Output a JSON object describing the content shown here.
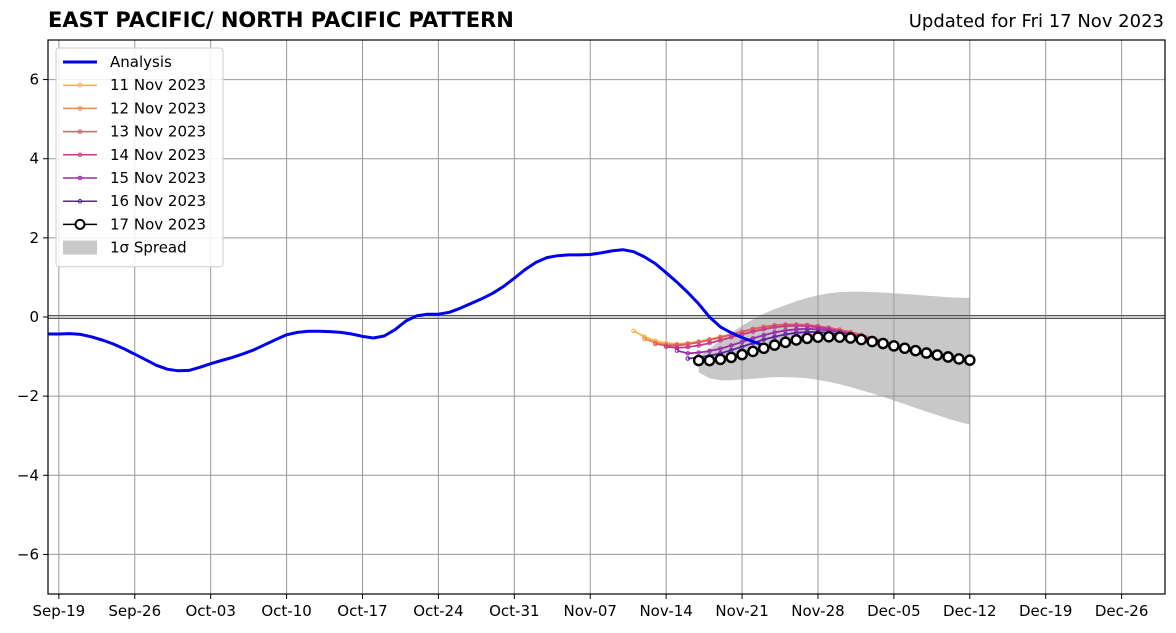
{
  "header": {
    "title": "EAST PACIFIC/ NORTH PACIFIC PATTERN",
    "updated": "Updated for Fri 17 Nov 2023"
  },
  "colors": {
    "analysis": "#0000ee",
    "spread": "#c8c8c8",
    "grid": "#999999",
    "zero_line": "#555555",
    "latest": "#000000"
  },
  "chart_data": {
    "type": "line",
    "title": "EAST PACIFIC/ NORTH PACIFIC PATTERN",
    "xlabel": "",
    "ylabel": "",
    "ylim": [
      -7,
      7
    ],
    "xlim": [
      "2023-09-18",
      "2023-12-30"
    ],
    "grid": true,
    "legend_position": "top-left",
    "x_ticks": [
      "Sep-19",
      "Sep-26",
      "Oct-03",
      "Oct-10",
      "Oct-17",
      "Oct-24",
      "Oct-31",
      "Nov-07",
      "Nov-14",
      "Nov-21",
      "Nov-28",
      "Dec-05",
      "Dec-12",
      "Dec-19",
      "Dec-26"
    ],
    "x_tick_dates": [
      "2023-09-19",
      "2023-09-26",
      "2023-10-03",
      "2023-10-10",
      "2023-10-17",
      "2023-10-24",
      "2023-10-31",
      "2023-11-07",
      "2023-11-14",
      "2023-11-21",
      "2023-11-28",
      "2023-12-05",
      "2023-12-12",
      "2023-12-19",
      "2023-12-26"
    ],
    "y_ticks": [
      6,
      4,
      2,
      0,
      -2,
      -4,
      -6
    ],
    "y_tick_labels": [
      "6",
      "4",
      "2",
      "0",
      "−2",
      "−4",
      "−6"
    ],
    "analysis": {
      "name": "Analysis",
      "color": "#0000ee",
      "start_date": "2023-09-18",
      "values": [
        -0.43,
        -0.43,
        -0.42,
        -0.44,
        -0.5,
        -0.58,
        -0.68,
        -0.8,
        -0.94,
        -1.08,
        -1.22,
        -1.32,
        -1.36,
        -1.35,
        -1.27,
        -1.18,
        -1.1,
        -1.02,
        -0.93,
        -0.83,
        -0.7,
        -0.57,
        -0.45,
        -0.39,
        -0.36,
        -0.36,
        -0.37,
        -0.39,
        -0.43,
        -0.49,
        -0.53,
        -0.48,
        -0.32,
        -0.1,
        0.03,
        0.07,
        0.07,
        0.12,
        0.22,
        0.34,
        0.46,
        0.6,
        0.77,
        0.98,
        1.2,
        1.38,
        1.5,
        1.55,
        1.57,
        1.57,
        1.58,
        1.62,
        1.67,
        1.7,
        1.65,
        1.52,
        1.35,
        1.12,
        0.88,
        0.62,
        0.33,
        0.0,
        -0.25,
        -0.4,
        -0.52,
        -0.62,
        -0.72
      ]
    },
    "series": [
      {
        "name": "11 Nov 2023",
        "color": "#f5b54a",
        "start_date": "2023-11-11",
        "values": [
          -0.35,
          -0.5,
          -0.6,
          -0.66,
          -0.68,
          -0.66,
          -0.62,
          -0.56,
          -0.5,
          -0.44,
          -0.38,
          -0.32,
          -0.27,
          -0.24,
          -0.22,
          -0.21,
          -0.22,
          -0.24,
          -0.28,
          -0.33,
          -0.39,
          -0.46,
          -0.54,
          -0.62,
          -0.7,
          -0.78,
          -0.85,
          -0.92,
          -0.98
        ]
      },
      {
        "name": "12 Nov 2023",
        "color": "#f08a4b",
        "start_date": "2023-11-12",
        "values": [
          -0.55,
          -0.65,
          -0.7,
          -0.7,
          -0.68,
          -0.64,
          -0.58,
          -0.52,
          -0.45,
          -0.38,
          -0.31,
          -0.26,
          -0.22,
          -0.2,
          -0.2,
          -0.21,
          -0.24,
          -0.28,
          -0.33,
          -0.4,
          -0.47,
          -0.55,
          -0.63,
          -0.71,
          -0.79,
          -0.86,
          -0.93,
          -0.99
        ]
      },
      {
        "name": "13 Nov 2023",
        "color": "#e0586a",
        "start_date": "2023-11-13",
        "values": [
          -0.68,
          -0.72,
          -0.72,
          -0.69,
          -0.64,
          -0.58,
          -0.51,
          -0.44,
          -0.37,
          -0.3,
          -0.25,
          -0.21,
          -0.19,
          -0.19,
          -0.2,
          -0.23,
          -0.27,
          -0.32,
          -0.38,
          -0.45,
          -0.53,
          -0.61,
          -0.69,
          -0.77,
          -0.85,
          -0.92,
          -0.98
        ]
      },
      {
        "name": "14 Nov 2023",
        "color": "#c23b8c",
        "start_date": "2023-11-14",
        "values": [
          -0.75,
          -0.78,
          -0.76,
          -0.72,
          -0.66,
          -0.59,
          -0.51,
          -0.44,
          -0.37,
          -0.31,
          -0.26,
          -0.23,
          -0.22,
          -0.23,
          -0.26,
          -0.3,
          -0.36,
          -0.42,
          -0.49,
          -0.57,
          -0.65,
          -0.73,
          -0.81,
          -0.89,
          -0.96,
          -1.02
        ]
      },
      {
        "name": "15 Nov 2023",
        "color": "#9a2aa8",
        "start_date": "2023-11-15",
        "values": [
          -0.85,
          -0.92,
          -0.9,
          -0.86,
          -0.8,
          -0.72,
          -0.63,
          -0.54,
          -0.46,
          -0.39,
          -0.34,
          -0.31,
          -0.3,
          -0.31,
          -0.34,
          -0.38,
          -0.44,
          -0.5,
          -0.57,
          -0.64,
          -0.72,
          -0.8,
          -0.87,
          -0.94,
          -1.0
        ]
      },
      {
        "name": "16 Nov 2023",
        "color": "#5a22a0",
        "start_date": "2023-11-16",
        "values": [
          -1.05,
          -1.02,
          -0.98,
          -0.92,
          -0.84,
          -0.75,
          -0.66,
          -0.57,
          -0.5,
          -0.44,
          -0.4,
          -0.38,
          -0.38,
          -0.4,
          -0.44,
          -0.49,
          -0.55,
          -0.62,
          -0.69,
          -0.76,
          -0.83,
          -0.9,
          -0.96,
          -1.01
        ]
      },
      {
        "name": "17 Nov 2023",
        "color": "#000000",
        "start_date": "2023-11-17",
        "marker": "open-circle",
        "values": [
          -1.1,
          -1.1,
          -1.07,
          -1.02,
          -0.95,
          -0.87,
          -0.79,
          -0.71,
          -0.64,
          -0.58,
          -0.54,
          -0.51,
          -0.5,
          -0.51,
          -0.53,
          -0.57,
          -0.62,
          -0.67,
          -0.73,
          -0.79,
          -0.85,
          -0.91,
          -0.96,
          -1.01,
          -1.06,
          -1.09
        ]
      }
    ],
    "spread": {
      "name": "1σ Spread",
      "color": "#c8c8c8",
      "start_date": "2023-11-17",
      "upper": [
        -1.0,
        -0.8,
        -0.6,
        -0.4,
        -0.22,
        -0.06,
        0.08,
        0.2,
        0.3,
        0.4,
        0.48,
        0.55,
        0.6,
        0.63,
        0.64,
        0.64,
        0.63,
        0.62,
        0.6,
        0.58,
        0.56,
        0.54,
        0.52,
        0.5,
        0.49,
        0.48
      ],
      "lower": [
        -1.4,
        -1.55,
        -1.6,
        -1.6,
        -1.58,
        -1.56,
        -1.54,
        -1.52,
        -1.52,
        -1.53,
        -1.55,
        -1.59,
        -1.64,
        -1.7,
        -1.77,
        -1.85,
        -1.93,
        -2.02,
        -2.11,
        -2.2,
        -2.3,
        -2.39,
        -2.48,
        -2.57,
        -2.65,
        -2.72
      ]
    },
    "legend": [
      {
        "label": "Analysis",
        "kind": "thick-line",
        "color": "#0000ee"
      },
      {
        "label": "11 Nov 2023",
        "kind": "dot-line",
        "color": "#f5b54a"
      },
      {
        "label": "12 Nov 2023",
        "kind": "dot-line",
        "color": "#f08a4b"
      },
      {
        "label": "13 Nov 2023",
        "kind": "dot-line",
        "color": "#e0586a"
      },
      {
        "label": "14 Nov 2023",
        "kind": "dot-line",
        "color": "#c23b8c"
      },
      {
        "label": "15 Nov 2023",
        "kind": "dot-line",
        "color": "#9a2aa8"
      },
      {
        "label": "16 Nov 2023",
        "kind": "dot-line",
        "color": "#5a22a0"
      },
      {
        "label": "17 Nov 2023",
        "kind": "circle-line",
        "color": "#000000"
      },
      {
        "label": "1σ Spread",
        "kind": "patch",
        "color": "#c8c8c8"
      }
    ]
  }
}
